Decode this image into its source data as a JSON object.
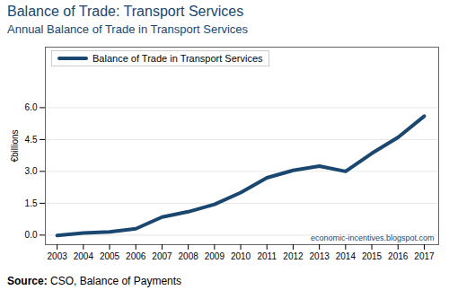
{
  "chart_data": {
    "type": "line",
    "title": "Balance of Trade: Transport Services",
    "subtitle": "Annual Balance of Trade in Transport Services",
    "y_label": "€billions",
    "caption": "Source: CSO, Balance of Payments",
    "annotation": "economic-incentives.blogspot.com",
    "x": [
      2003,
      2004,
      2005,
      2006,
      2007,
      2008,
      2009,
      2010,
      2011,
      2012,
      2013,
      2014,
      2015,
      2016,
      2017
    ],
    "series": [
      {
        "name": "Balance of Trade in Transport Services",
        "color": "#1a476f",
        "values": [
          -0.02,
          0.1,
          0.15,
          0.3,
          0.85,
          1.1,
          1.45,
          2.0,
          2.7,
          3.05,
          3.25,
          3.0,
          3.85,
          4.6,
          5.6
        ]
      }
    ],
    "xlim": [
      2002.55,
      2017.55
    ],
    "xticks": [
      2003,
      2004,
      2005,
      2006,
      2007,
      2008,
      2009,
      2010,
      2011,
      2012,
      2013,
      2014,
      2015,
      2016,
      2017
    ],
    "ylim": [
      -0.45,
      8.85
    ],
    "yticks": [
      {
        "value": 0,
        "label": "0.0"
      },
      {
        "value": 1.5,
        "label": "1.5"
      },
      {
        "value": 3,
        "label": "3.0"
      },
      {
        "value": 4.5,
        "label": "4.5"
      },
      {
        "value": 6,
        "label": "6.0"
      }
    ],
    "grid": true,
    "legend": "top-left"
  }
}
